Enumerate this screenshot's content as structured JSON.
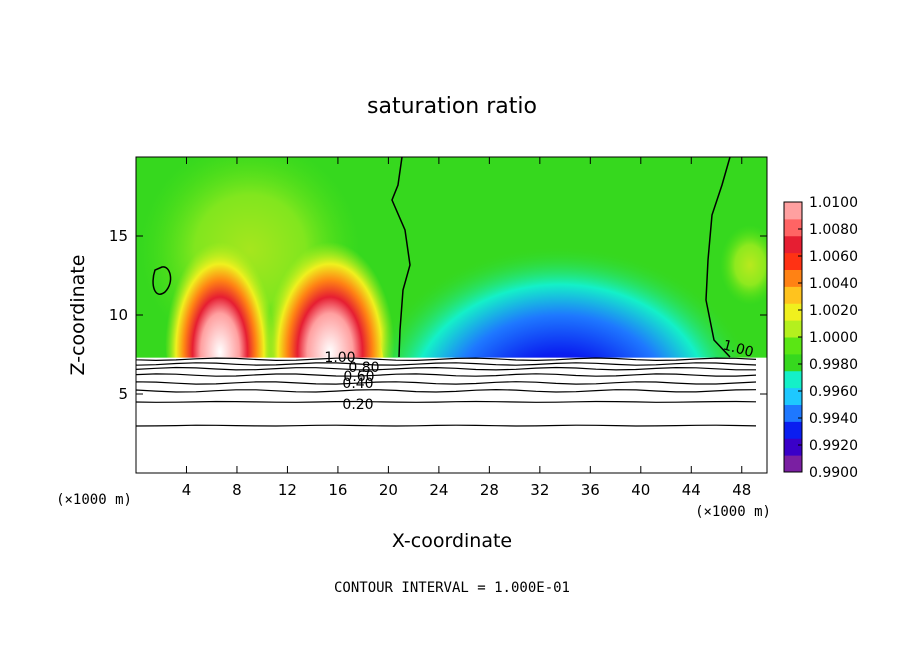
{
  "chart_data": {
    "type": "heatmap",
    "title": "saturation ratio",
    "xlabel": "X-coordinate",
    "ylabel": "Z-coordinate",
    "x_unit_left": "(×1000 m)",
    "x_unit_right": "(×1000 m)",
    "xlim": [
      0,
      50
    ],
    "ylim": [
      0,
      20
    ],
    "xticks": [
      4,
      8,
      12,
      16,
      20,
      24,
      28,
      32,
      36,
      40,
      44,
      48
    ],
    "xtick_labels": [
      "4",
      "8",
      "12",
      "16",
      "20",
      "24",
      "28",
      "32",
      "36",
      "40",
      "44",
      "48"
    ],
    "yticks": [
      5,
      10,
      15
    ],
    "ytick_labels": [
      "5",
      "10",
      "15"
    ],
    "footer": "CONTOUR INTERVAL = 1.000E-01",
    "colorbar": {
      "levels": [
        "1.0100",
        "1.0080",
        "1.0060",
        "1.0040",
        "1.0020",
        "1.0000",
        "0.9980",
        "0.9960",
        "0.9940",
        "0.9920",
        "0.9900"
      ],
      "min": 0.99,
      "max": 1.01,
      "colors": [
        "#7a1fa2",
        "#3a00c8",
        "#0a1ef0",
        "#1e78ff",
        "#1ec8ff",
        "#14f0c8",
        "#36d81e",
        "#5ae614",
        "#b4f01e",
        "#f0f01e",
        "#ffc31e",
        "#ff8214",
        "#ff3214",
        "#e61e32",
        "#ff6464",
        "#ffa0a0"
      ]
    },
    "contour_labels": [
      "1.00",
      "0.80",
      "0.60",
      "0.40",
      "0.20",
      "1.00"
    ],
    "surface_z": 7.3,
    "contour_lines_z": [
      7.2,
      6.9,
      6.6,
      6.2,
      5.7,
      5.2,
      4.5,
      3.0
    ]
  }
}
